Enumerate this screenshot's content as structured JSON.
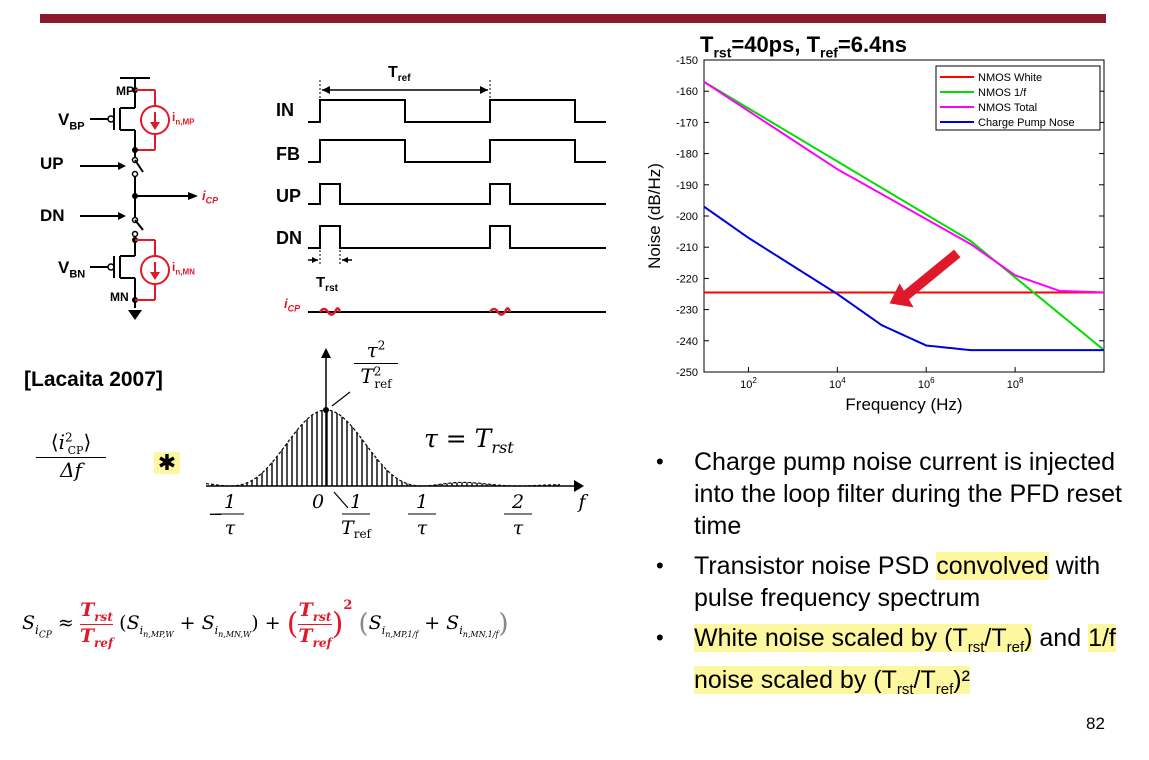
{
  "slide": {
    "title_html": "T<sub>rst</sub>=40ps, T<sub>ref</sub>=6.4ns",
    "citation": "[Lacaita 2007]",
    "page_number": "82",
    "accent_color": "#8b1a2b"
  },
  "circuit": {
    "labels": {
      "mp": "MP",
      "mn": "MN",
      "vbp": "V",
      "vbp_sub": "BP",
      "vbn": "V",
      "vbn_sub": "BN",
      "up": "UP",
      "dn": "DN",
      "icp": "i",
      "icp_sub": "CP",
      "in_mp": "i",
      "in_mp_sub": "n,MP",
      "in_mn": "i",
      "in_mn_sub": "n,MN"
    },
    "noise_color": "#e0192a"
  },
  "timing": {
    "signals": [
      "IN",
      "FB",
      "UP",
      "DN"
    ],
    "tref": "T",
    "tref_sub": "ref",
    "trst": "T",
    "trst_sub": "rst",
    "icp": "i",
    "icp_sub": "CP"
  },
  "spectrum": {
    "peak_label_num": "τ²",
    "peak_label_den": "T²ref",
    "tau_eq": "τ = Trst",
    "x_ticks": [
      "−1/τ",
      "0",
      "1/Tref",
      "1/τ",
      "2/τ"
    ],
    "axis_label": "f",
    "lhs_num": "⟨i²CP⟩",
    "lhs_den": "Δf",
    "convolve": "✱"
  },
  "formula": {
    "text": "S_iCP ≈ (Trst/Tref)(S_in,MP,W + S_in,MN,W) + (Trst/Tref)²(S_in,MP,1/f + S_in,MN,1/f)"
  },
  "chart_data": {
    "type": "line",
    "xlabel": "Frequency (Hz)",
    "ylabel": "Noise (dB/Hz)",
    "x_scale": "log",
    "xlim": [
      10,
      10000000000
    ],
    "ylim": [
      -250,
      -150
    ],
    "x_ticks": [
      "10^2",
      "10^4",
      "10^6",
      "10^8"
    ],
    "y_ticks": [
      -150,
      -160,
      -170,
      -180,
      -190,
      -200,
      -210,
      -220,
      -230,
      -240,
      -250
    ],
    "legend_position": "top-right",
    "series": [
      {
        "name": "NMOS White",
        "color": "#ff0000",
        "x": [
          10,
          10000000000
        ],
        "y": [
          -224.5,
          -224.5
        ]
      },
      {
        "name": "NMOS 1/f",
        "color": "#00dd00",
        "x": [
          10,
          10000000,
          10000000000
        ],
        "y": [
          -157,
          -208,
          -243
        ]
      },
      {
        "name": "NMOS Total",
        "color": "#ff00ff",
        "x": [
          10,
          10000,
          1000000,
          10000000,
          100000000,
          1000000000,
          10000000000
        ],
        "y": [
          -157,
          -185,
          -201,
          -209,
          -219,
          -224,
          -224.5
        ]
      },
      {
        "name": "Charge Pump Nose",
        "color": "#0000dd",
        "x": [
          10,
          100,
          1000,
          10000,
          100000,
          1000000,
          10000000,
          10000000000
        ],
        "y": [
          -197,
          -207,
          -216,
          -225,
          -235,
          -241.5,
          -243,
          -243
        ]
      }
    ]
  },
  "bullets": [
    {
      "parts": [
        {
          "t": "Charge pump noise current is injected into the loop filter during the PFD reset time",
          "hl": false
        }
      ]
    },
    {
      "parts": [
        {
          "t": "Transistor noise PSD ",
          "hl": false
        },
        {
          "t": "convolved",
          "hl": true
        },
        {
          "t": " with pulse frequency spectrum",
          "hl": false
        }
      ]
    },
    {
      "parts": [
        {
          "t": "White noise scaled by (T",
          "hl": true,
          "sub": "rst",
          "rest": "/T",
          "sub2": "ref",
          "end": ")"
        },
        {
          "t": " and ",
          "hl": false
        },
        {
          "t": "1/f noise scaled by (T",
          "hl": true,
          "sub": "rst",
          "rest": "/T",
          "sub2": "ref",
          "end": ")²"
        }
      ]
    }
  ]
}
